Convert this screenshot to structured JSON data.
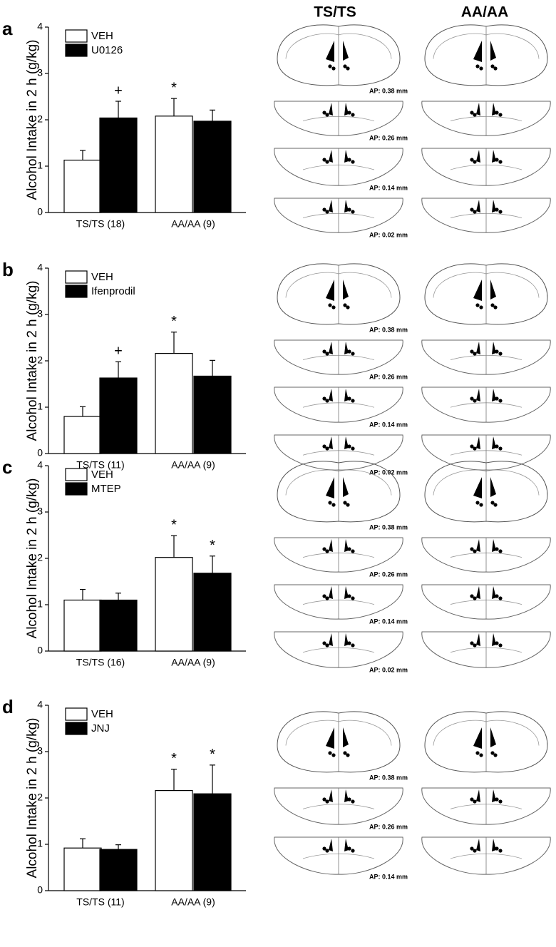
{
  "atlas_columns": [
    "TS/TS",
    "AA/AA"
  ],
  "chart_data": [
    {
      "type": "bar",
      "panel": "a",
      "y_label": "Alcohol Intake in 2 h (g/kg)",
      "categories": [
        "TS/TS (18)",
        "AA/AA (9)"
      ],
      "series": [
        {
          "name": "VEH",
          "color": "#ffffff",
          "values": [
            1.13,
            2.08
          ],
          "errors": [
            0.21,
            0.38
          ],
          "annotations": [
            null,
            "*"
          ]
        },
        {
          "name": "U0126",
          "color": "#000000",
          "values": [
            2.04,
            1.97
          ],
          "errors": [
            0.36,
            0.24
          ],
          "annotations": [
            "+",
            null
          ]
        }
      ],
      "ylim": [
        0,
        4
      ],
      "yticks": [
        0,
        1,
        2,
        3,
        4
      ],
      "atlas_sections": [
        "AP: 0.38 mm",
        "AP: 0.26 mm",
        "AP: 0.14 mm",
        "AP: 0.02 mm"
      ]
    },
    {
      "type": "bar",
      "panel": "b",
      "y_label": "Alcohol Intake in 2 h (g/kg)",
      "categories": [
        "TS/TS (11)",
        "AA/AA (9)"
      ],
      "series": [
        {
          "name": "VEH",
          "color": "#ffffff",
          "values": [
            0.8,
            2.16
          ],
          "errors": [
            0.21,
            0.46
          ],
          "annotations": [
            null,
            "*"
          ]
        },
        {
          "name": "Ifenprodil",
          "color": "#000000",
          "values": [
            1.63,
            1.67
          ],
          "errors": [
            0.35,
            0.34
          ],
          "annotations": [
            "+",
            null
          ]
        }
      ],
      "ylim": [
        0,
        4
      ],
      "yticks": [
        0,
        1,
        2,
        3,
        4
      ],
      "atlas_sections": [
        "AP: 0.38 mm",
        "AP: 0.26 mm",
        "AP: 0.14 mm",
        "AP: 0.02 mm"
      ]
    },
    {
      "type": "bar",
      "panel": "c",
      "y_label": "Alcohol Intake in 2 h (g/kg)",
      "categories": [
        "TS/TS (16)",
        "AA/AA (9)"
      ],
      "series": [
        {
          "name": "VEH",
          "color": "#ffffff",
          "values": [
            1.1,
            2.02
          ],
          "errors": [
            0.23,
            0.47
          ],
          "annotations": [
            null,
            "*"
          ]
        },
        {
          "name": "MTEP",
          "color": "#000000",
          "values": [
            1.1,
            1.68
          ],
          "errors": [
            0.15,
            0.37
          ],
          "annotations": [
            null,
            "*"
          ]
        }
      ],
      "ylim": [
        0,
        4
      ],
      "yticks": [
        0,
        1,
        2,
        3,
        4
      ],
      "atlas_sections": [
        "AP: 0.38 mm",
        "AP: 0.26 mm",
        "AP: 0.14 mm",
        "AP: 0.02 mm"
      ]
    },
    {
      "type": "bar",
      "panel": "d",
      "y_label": "Alcohol Intake in 2 h (g/kg)",
      "categories": [
        "TS/TS (11)",
        "AA/AA (9)"
      ],
      "series": [
        {
          "name": "VEH",
          "color": "#ffffff",
          "values": [
            0.92,
            2.16
          ],
          "errors": [
            0.2,
            0.46
          ],
          "annotations": [
            null,
            "*"
          ]
        },
        {
          "name": "JNJ",
          "color": "#000000",
          "values": [
            0.89,
            2.09
          ],
          "errors": [
            0.1,
            0.62
          ],
          "annotations": [
            null,
            "*"
          ]
        }
      ],
      "ylim": [
        0,
        4
      ],
      "yticks": [
        0,
        1,
        2,
        3,
        4
      ],
      "atlas_sections": [
        "AP: 0.38 mm",
        "AP: 0.26 mm",
        "AP: 0.14 mm"
      ]
    }
  ]
}
